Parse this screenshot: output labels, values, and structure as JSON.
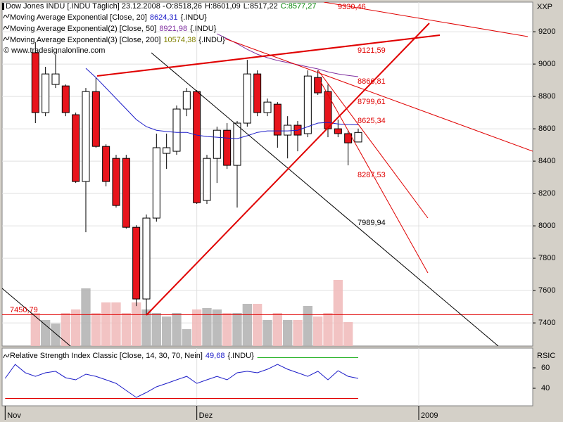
{
  "chart_data": [
    {
      "type": "candlestick",
      "title": "Dow Jones INDU [.INDU Täglich] 23.12.2008 -",
      "ohlc_labels": [
        "O:8518,26",
        "H:8601,09",
        "L:8517,22",
        "C:8577,27"
      ],
      "ohlc_label_colors": [
        "#000000",
        "#000000",
        "#000000",
        "#008000"
      ],
      "source": "© www.tradesignalonline.com",
      "y_axis_label": "XXP",
      "categories": [
        null,
        null,
        null,
        null,
        null,
        null,
        null,
        null,
        null,
        null,
        null,
        null,
        null,
        null,
        null,
        null,
        null,
        null,
        null,
        null,
        null,
        null,
        null,
        null,
        null,
        null,
        null,
        null,
        null,
        null,
        null,
        null,
        null,
        null,
        null,
        null
      ],
      "xlim": [
        -0.3,
        52.3
      ],
      "xticks": [
        {
          "value": 0,
          "label": "Nov"
        },
        {
          "value": 19,
          "label": "Dez"
        },
        {
          "value": 41,
          "label": "2009"
        }
      ],
      "ylim": [
        7257,
        9383
      ],
      "yticks": [
        7400,
        7600,
        7800,
        8000,
        8200,
        8400,
        8600,
        8800,
        9000,
        9200
      ],
      "grid": true,
      "up_color": "#ffffff",
      "down_color": "#e8141c",
      "open": [
        null,
        null,
        null,
        9070,
        8700,
        8874,
        8865,
        8687,
        8274,
        8830,
        8491,
        8417,
        8417,
        7991,
        7548,
        8048,
        8448,
        8461,
        8722,
        8830,
        8157,
        8417,
        8591,
        8374,
        8635,
        8939,
        8700,
        8752,
        8561,
        8622,
        8570,
        8917,
        8830,
        8600,
        8570,
        8518.26
      ],
      "high": [
        null,
        null,
        null,
        9135,
        8983,
        9057,
        8874,
        8700,
        8852,
        8917,
        8504,
        8439,
        8439,
        8004,
        8070,
        8570,
        8570,
        8744,
        8852,
        8839,
        8439,
        8613,
        8635,
        8648,
        9026,
        8961,
        8787,
        8765,
        8678,
        8648,
        8961,
        8961,
        8874,
        8657,
        8591,
        8601.09
      ],
      "low": [
        null,
        null,
        null,
        8635,
        8678,
        8852,
        8678,
        8265,
        7961,
        8483,
        8244,
        8113,
        7983,
        7504,
        7451,
        8026,
        8352,
        8439,
        8678,
        8135,
        8135,
        8265,
        8352,
        8113,
        8613,
        8678,
        8678,
        8483,
        8417,
        8461,
        8548,
        8809,
        8548,
        8548,
        8374,
        8517.22
      ],
      "close": [
        null,
        null,
        null,
        8700,
        8939,
        8939,
        8700,
        8274,
        8830,
        8491,
        8274,
        8126,
        7991,
        7548,
        8048,
        8483,
        8483,
        8722,
        8830,
        8143,
        8417,
        8591,
        8374,
        8635,
        8939,
        8700,
        8765,
        8561,
        8622,
        8561,
        8926,
        8822,
        8600,
        8570,
        8513,
        8577.27
      ],
      "series": [
        {
          "name": "Moving Average Exponential [Close, 20]",
          "value_label": "8624,31",
          "suffix": "{.INDU}",
          "color": "#1c1cc8",
          "values": [
            null,
            null,
            null,
            null,
            null,
            null,
            null,
            null,
            8974,
            8917,
            8852,
            8787,
            8722,
            8657,
            8613,
            8591,
            8583,
            8578,
            8578,
            8561,
            8552,
            8548,
            8543,
            8539,
            8557,
            8578,
            8587,
            8587,
            8587,
            8591,
            8613,
            8635,
            8639,
            8630,
            8626,
            8624.31
          ]
        },
        {
          "name": "Moving Average Exponential(2) [Close, 50]",
          "value_label": "8921,98",
          "suffix": "{.INDU}",
          "color": "#8030a0",
          "values": [
            null,
            null,
            null,
            null,
            null,
            null,
            null,
            null,
            null,
            null,
            null,
            null,
            null,
            null,
            null,
            null,
            null,
            null,
            null,
            null,
            null,
            9187,
            9157,
            9126,
            9091,
            9061,
            9039,
            9022,
            9009,
            8996,
            8983,
            8970,
            8952,
            8939,
            8930,
            8921.98
          ]
        },
        {
          "name": "Moving Average Exponential(3) [Close, 200]",
          "value_label": "10574,38",
          "suffix": "{.INDU}",
          "color": "#808000"
        }
      ],
      "volume": {
        "y2lim": [
          0,
          489
        ],
        "up_color": "#b0b0b0",
        "down_color": "#f0b8b8",
        "values": [
          null,
          null,
          null,
          47,
          37,
          32,
          47,
          52,
          82,
          47,
          62,
          62,
          47,
          62,
          52,
          47,
          42,
          47,
          24,
          52,
          54,
          52,
          47,
          47,
          60,
          60,
          37,
          47,
          37,
          37,
          57,
          42,
          47,
          94,
          34,
          null
        ]
      },
      "annotations": [
        {
          "value": 9330.46,
          "label": "9330,46",
          "color": "#e00000"
        },
        {
          "value": 9121.59,
          "label": "9121,59",
          "color": "#e00000"
        },
        {
          "value": 8866.81,
          "label": "8866,81",
          "color": "#e00000"
        },
        {
          "value": 8799.61,
          "label": "8799,61",
          "color": "#e00000"
        },
        {
          "value": 8625.34,
          "label": "8625,34",
          "color": "#e00000"
        },
        {
          "value": 8287.53,
          "label": "8287,53",
          "color": "#e00000"
        },
        {
          "value": 7989.94,
          "label": "7989,94",
          "color": "#000000"
        },
        {
          "value": 7450.79,
          "label": "7450,79",
          "color": "#e00000",
          "hline": true
        }
      ]
    },
    {
      "type": "line",
      "name": "Relative Strength Index Classic [Close, 14, 30, 70, Nein]",
      "value_label": "49,68",
      "suffix": "{.INDU}",
      "y_axis_label": "RSIC",
      "color": "#1c1cc8",
      "values": [
        49.7,
        63.4,
        55.2,
        51.7,
        55.2,
        56.6,
        50.3,
        48.3,
        53.8,
        51.7,
        48.3,
        44.8,
        37.9,
        31.0,
        35.9,
        41.4,
        44.8,
        48.3,
        51.7,
        44.8,
        48.3,
        51.7,
        48.3,
        55.2,
        56.6,
        55.2,
        58.6,
        63.4,
        58.6,
        55.2,
        51.7,
        56.6,
        48.3,
        57.2,
        51.7,
        49.68
      ],
      "ylim": [
        22.8,
        79.3
      ],
      "yticks": [
        40,
        60
      ],
      "levels": [
        {
          "value": 70,
          "color": "#20b020"
        },
        {
          "value": 30,
          "color": "#e00000"
        }
      ]
    }
  ]
}
